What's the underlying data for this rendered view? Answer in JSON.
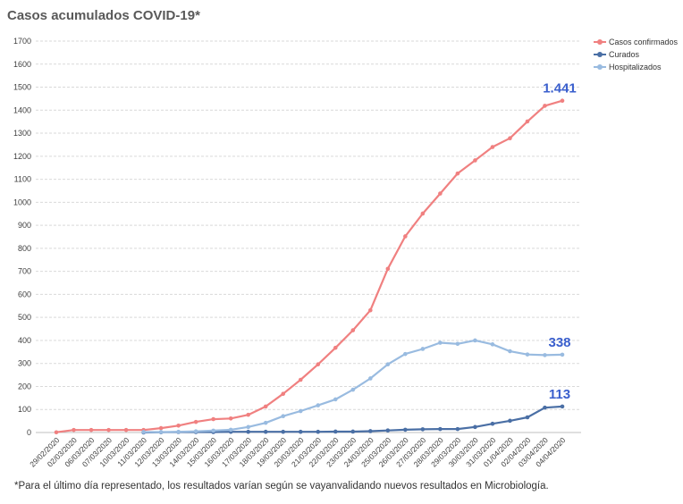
{
  "chart_data": {
    "type": "line",
    "title": "Casos acumulados COVID-19*",
    "footnote": "*Para el último día representado, los resultados varían según se vayanvalidando nuevos resultados en Microbiología.",
    "ylim": [
      0,
      1700
    ],
    "yticks": [
      0,
      100,
      200,
      300,
      400,
      500,
      600,
      700,
      800,
      900,
      1000,
      1100,
      1200,
      1300,
      1400,
      1500,
      1600,
      1700
    ],
    "grid": true,
    "legend_position": "top-right",
    "categories": [
      "29/02/2020",
      "02/03/2020",
      "06/03/2020",
      "07/03/2020",
      "10/03/2020",
      "11/03/2020",
      "12/03/2020",
      "13/03/2020",
      "14/03/2020",
      "15/03/2020",
      "16/03/2020",
      "17/03/2020",
      "18/03/2020",
      "19/03/2020",
      "20/03/2020",
      "21/03/2020",
      "22/03/2020",
      "23/03/2020",
      "24/03/2020",
      "25/03/2020",
      "26/03/2020",
      "27/03/2020",
      "28/03/2020",
      "29/03/2020",
      "30/03/2020",
      "31/03/2020",
      "01/04/2020",
      "02/04/2020",
      "03/04/2020",
      "04/04/2020"
    ],
    "series": [
      {
        "name": "Casos confirmados",
        "color": "#f08080",
        "values": [
          1,
          11,
          11,
          11,
          11,
          11,
          19,
          30,
          46,
          58,
          61,
          77,
          113,
          168,
          229,
          296,
          368,
          444,
          531,
          711,
          852,
          951,
          1038,
          1125,
          1182,
          1240,
          1278,
          1351,
          1419,
          1441
        ],
        "end_label": "1.441"
      },
      {
        "name": "Curados",
        "color": "#4a6fa5",
        "values": [
          null,
          null,
          null,
          null,
          null,
          0,
          1,
          2,
          2,
          2,
          3,
          3,
          3,
          3,
          3,
          3,
          4,
          4,
          6,
          9,
          12,
          14,
          15,
          15,
          24,
          38,
          51,
          66,
          108,
          113
        ],
        "end_label": "113"
      },
      {
        "name": "Hospitalizados",
        "color": "#99bbe0",
        "values": [
          null,
          null,
          null,
          null,
          null,
          2,
          2,
          3,
          5,
          8,
          12,
          24,
          42,
          71,
          93,
          118,
          144,
          186,
          235,
          296,
          341,
          363,
          390,
          385,
          400,
          383,
          353,
          339,
          336,
          338
        ],
        "end_label": "338"
      }
    ]
  }
}
